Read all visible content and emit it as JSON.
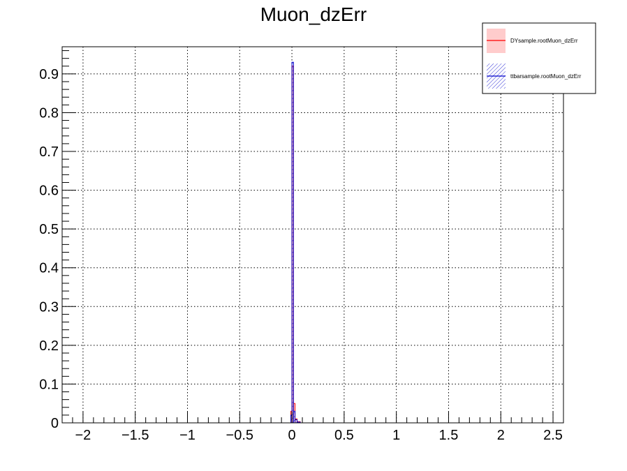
{
  "chart_data": {
    "type": "histogram",
    "title": "Muon_dzErr",
    "xlabel": "",
    "ylabel": "",
    "xlim": [
      -2.2,
      2.6
    ],
    "ylim": [
      0,
      0.97
    ],
    "x_ticks": [
      -2,
      -1.5,
      -1,
      -0.5,
      0,
      0.5,
      1,
      1.5,
      2,
      2.5
    ],
    "x_tick_labels": [
      "−2",
      "−1.5",
      "−1",
      "−0.5",
      "0",
      "0.5",
      "1",
      "1.5",
      "2",
      "2.5"
    ],
    "y_ticks": [
      0,
      0.1,
      0.2,
      0.3,
      0.4,
      0.5,
      0.6,
      0.7,
      0.8,
      0.9
    ],
    "y_tick_labels": [
      "0",
      "0.1",
      "0.2",
      "0.3",
      "0.4",
      "0.5",
      "0.6",
      "0.7",
      "0.8",
      "0.9"
    ],
    "grid": true,
    "legend_position": "top-right",
    "series": [
      {
        "name": "DYsample.rootMuon_dzErr",
        "color": "#ff0000",
        "fill": "#ffcccc",
        "fill_style": "solid",
        "bins": [
          {
            "x0": -0.01,
            "x1": 0.0,
            "y": 0.03
          },
          {
            "x0": 0.0,
            "x1": 0.015,
            "y": 0.92
          },
          {
            "x0": 0.015,
            "x1": 0.03,
            "y": 0.05
          },
          {
            "x0": 0.03,
            "x1": 0.05,
            "y": 0.01
          },
          {
            "x0": 0.05,
            "x1": 0.08,
            "y": 0.003
          }
        ]
      },
      {
        "name": "ttbarsample.rootMuon_dzErr",
        "color": "#0000cc",
        "fill": "#0000cc",
        "fill_style": "hatched",
        "bins": [
          {
            "x0": -0.01,
            "x1": 0.0,
            "y": 0.02
          },
          {
            "x0": 0.0,
            "x1": 0.015,
            "y": 0.93
          },
          {
            "x0": 0.015,
            "x1": 0.03,
            "y": 0.03
          },
          {
            "x0": 0.03,
            "x1": 0.05,
            "y": 0.008
          },
          {
            "x0": 0.05,
            "x1": 0.08,
            "y": 0.002
          }
        ]
      }
    ]
  }
}
